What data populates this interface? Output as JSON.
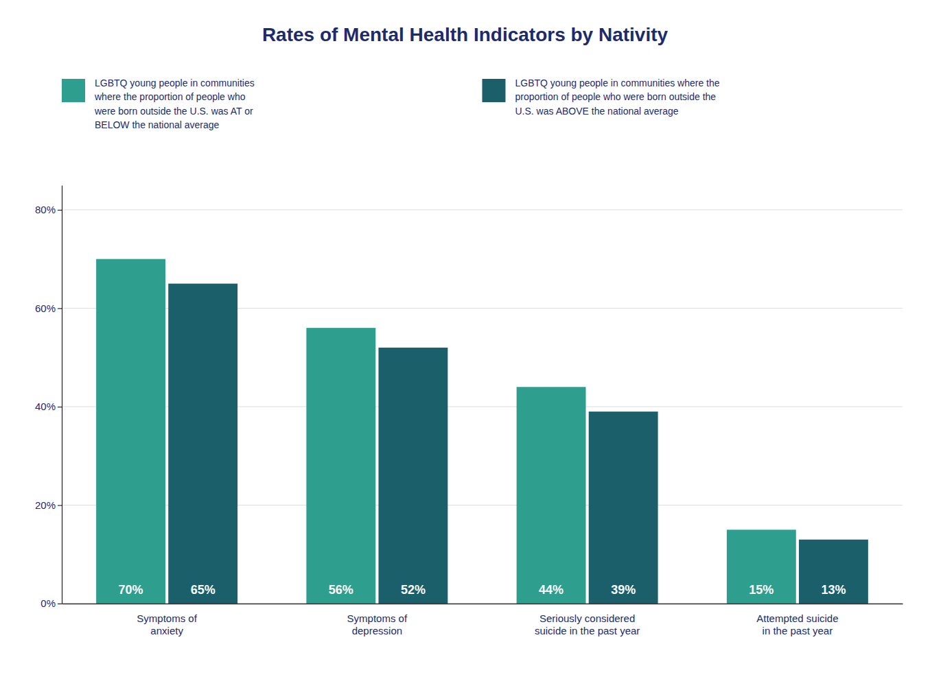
{
  "chart_data": {
    "type": "bar",
    "title": "Rates of Mental Health Indicators by Nativity",
    "categories": [
      "Symptoms of\nanxiety",
      "Symptoms of\ndepression",
      "Seriously considered\nsuicide in the past year",
      "Attempted suicide\nin the past year"
    ],
    "series": [
      {
        "name": "LGBTQ young people in communities\nwhere the proportion of people who\nwere born outside the U.S. was AT or\nBELOW the national average",
        "color": "#2E9E8E",
        "values": [
          70,
          56,
          44,
          15
        ],
        "value_labels": [
          "70%",
          "56%",
          "44%",
          "15%"
        ]
      },
      {
        "name": "LGBTQ young people in communities where the\nproportion of people who were born outside the\nU.S. was ABOVE the national average",
        "color": "#1A5F6A",
        "values": [
          65,
          52,
          39,
          13
        ],
        "value_labels": [
          "65%",
          "52%",
          "39%",
          "13%"
        ]
      }
    ],
    "ylim": [
      0,
      85
    ],
    "yticks": [
      {
        "value": 0,
        "label": "0%"
      },
      {
        "value": 20,
        "label": "20%"
      },
      {
        "value": 40,
        "label": "40%"
      },
      {
        "value": 60,
        "label": "60%"
      },
      {
        "value": 80,
        "label": "80%"
      }
    ],
    "grid": true,
    "legend": "top",
    "data_labels": true
  }
}
